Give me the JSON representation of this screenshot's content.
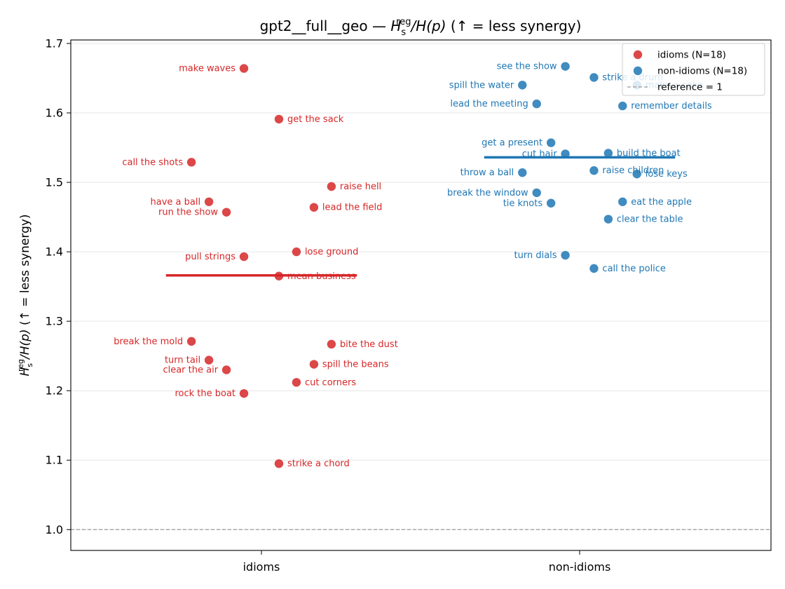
{
  "chart_data": {
    "type": "scatter",
    "title_prefix": "gpt2__full__geo — ",
    "title_suffix": "  (↑ = less synergy)",
    "ylabel_suffix": "  (↑ = less synergy)",
    "math": {
      "H": "H",
      "sub": "s",
      "sup": "reg",
      "rest": "/H(p)"
    },
    "categories": [
      "idioms",
      "non-idioms"
    ],
    "ylim": [
      0.97,
      1.705
    ],
    "yticks": [
      1.0,
      1.1,
      1.2,
      1.3,
      1.4,
      1.5,
      1.6,
      1.7
    ],
    "ytick_labels": [
      "1.0",
      "1.1",
      "1.2",
      "1.3",
      "1.4",
      "1.5",
      "1.6",
      "1.7"
    ],
    "grid": "horizontal",
    "legend_position": "top-right",
    "reference": {
      "value": 1.0,
      "label": "reference = 1"
    },
    "series": [
      {
        "name": "idioms (N=18)",
        "color": "#d62728",
        "category": "idioms",
        "mean": 1.366,
        "points": [
          {
            "label": "make waves",
            "y": 1.664,
            "xo": -0.055,
            "side": "left"
          },
          {
            "label": "get the sack",
            "y": 1.591,
            "xo": 0.055,
            "side": "right"
          },
          {
            "label": "call the shots",
            "y": 1.529,
            "xo": -0.22,
            "side": "left"
          },
          {
            "label": "raise hell",
            "y": 1.494,
            "xo": 0.22,
            "side": "right"
          },
          {
            "label": "have a ball",
            "y": 1.472,
            "xo": -0.165,
            "side": "left"
          },
          {
            "label": "lead the field",
            "y": 1.464,
            "xo": 0.165,
            "side": "right"
          },
          {
            "label": "run the show",
            "y": 1.457,
            "xo": -0.11,
            "side": "left"
          },
          {
            "label": "lose ground",
            "y": 1.4,
            "xo": 0.11,
            "side": "right"
          },
          {
            "label": "pull strings",
            "y": 1.393,
            "xo": -0.055,
            "side": "left"
          },
          {
            "label": "mean business",
            "y": 1.365,
            "xo": 0.055,
            "side": "right"
          },
          {
            "label": "break the mold",
            "y": 1.271,
            "xo": -0.22,
            "side": "left"
          },
          {
            "label": "bite the dust",
            "y": 1.267,
            "xo": 0.22,
            "side": "right"
          },
          {
            "label": "turn tail",
            "y": 1.244,
            "xo": -0.165,
            "side": "left"
          },
          {
            "label": "spill the beans",
            "y": 1.238,
            "xo": 0.165,
            "side": "right"
          },
          {
            "label": "clear the air",
            "y": 1.23,
            "xo": -0.11,
            "side": "left"
          },
          {
            "label": "cut corners",
            "y": 1.212,
            "xo": 0.11,
            "side": "right"
          },
          {
            "label": "rock the boat",
            "y": 1.196,
            "xo": -0.055,
            "side": "left"
          },
          {
            "label": "strike a chord",
            "y": 1.095,
            "xo": 0.055,
            "side": "right"
          }
        ]
      },
      {
        "name": "non-idioms (N=18)",
        "color": "#1f77b4",
        "category": "non-idioms",
        "mean": 1.536,
        "points": [
          {
            "label": "see the show",
            "y": 1.667,
            "xo": -0.045,
            "side": "left"
          },
          {
            "label": "strike a drum",
            "y": 1.651,
            "xo": 0.045,
            "side": "right"
          },
          {
            "label": "spill the water",
            "y": 1.64,
            "xo": -0.18,
            "side": "left"
          },
          {
            "label": "make a cake",
            "y": 1.64,
            "xo": 0.18,
            "side": "right"
          },
          {
            "label": "lead the meeting",
            "y": 1.613,
            "xo": -0.135,
            "side": "left"
          },
          {
            "label": "remember details",
            "y": 1.61,
            "xo": 0.135,
            "side": "right"
          },
          {
            "label": "get a present",
            "y": 1.557,
            "xo": -0.09,
            "side": "left"
          },
          {
            "label": "build the boat",
            "y": 1.542,
            "xo": 0.09,
            "side": "right"
          },
          {
            "label": "cut hair",
            "y": 1.541,
            "xo": -0.045,
            "side": "left"
          },
          {
            "label": "raise children",
            "y": 1.517,
            "xo": 0.045,
            "side": "right"
          },
          {
            "label": "throw a ball",
            "y": 1.514,
            "xo": -0.18,
            "side": "left"
          },
          {
            "label": "lose keys",
            "y": 1.512,
            "xo": 0.18,
            "side": "right"
          },
          {
            "label": "break the window",
            "y": 1.485,
            "xo": -0.135,
            "side": "left"
          },
          {
            "label": "eat the apple",
            "y": 1.472,
            "xo": 0.135,
            "side": "right"
          },
          {
            "label": "tie knots",
            "y": 1.47,
            "xo": -0.09,
            "side": "left"
          },
          {
            "label": "clear the table",
            "y": 1.447,
            "xo": 0.09,
            "side": "right"
          },
          {
            "label": "turn dials",
            "y": 1.395,
            "xo": -0.045,
            "side": "left"
          },
          {
            "label": "call the police",
            "y": 1.376,
            "xo": 0.045,
            "side": "right"
          }
        ]
      }
    ]
  }
}
